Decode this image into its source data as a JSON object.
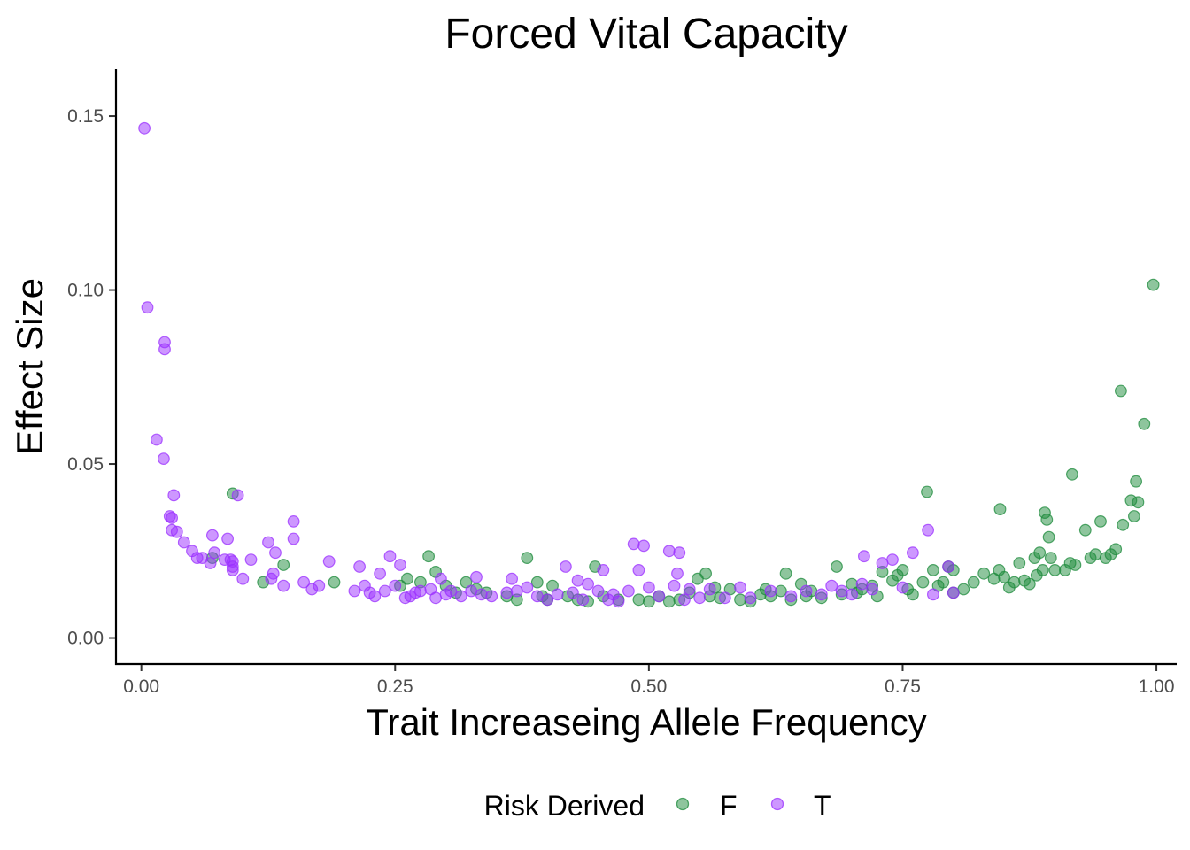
{
  "chart_data": {
    "type": "scatter",
    "title": "Forced Vital Capacity",
    "xlabel": "Trait Increaseing Allele Frequency",
    "ylabel": "Effect Size",
    "xlim": [
      -0.025,
      1.02
    ],
    "ylim": [
      -0.0075,
      0.1635
    ],
    "x_ticks": [
      0,
      0.25,
      0.5,
      0.75,
      1
    ],
    "x_tick_labels": [
      "0.00",
      "0.25",
      "0.50",
      "0.75",
      "1.00"
    ],
    "y_ticks": [
      0,
      0.05,
      0.1,
      0.15
    ],
    "y_tick_labels": [
      "0.00",
      "0.05",
      "0.10",
      "0.15"
    ],
    "grid": false,
    "legend": {
      "title": "Risk Derived",
      "position": "bottom"
    },
    "series": [
      {
        "name": "F",
        "color": "#1e8b3c",
        "points": [
          [
            0.09,
            0.0415
          ],
          [
            0.07,
            0.023
          ],
          [
            0.12,
            0.016
          ],
          [
            0.14,
            0.021
          ],
          [
            0.19,
            0.016
          ],
          [
            0.255,
            0.015
          ],
          [
            0.262,
            0.017
          ],
          [
            0.275,
            0.016
          ],
          [
            0.283,
            0.0235
          ],
          [
            0.29,
            0.019
          ],
          [
            0.3,
            0.015
          ],
          [
            0.31,
            0.013
          ],
          [
            0.32,
            0.016
          ],
          [
            0.33,
            0.014
          ],
          [
            0.34,
            0.013
          ],
          [
            0.36,
            0.012
          ],
          [
            0.37,
            0.011
          ],
          [
            0.38,
            0.023
          ],
          [
            0.39,
            0.016
          ],
          [
            0.395,
            0.012
          ],
          [
            0.4,
            0.011
          ],
          [
            0.405,
            0.015
          ],
          [
            0.42,
            0.012
          ],
          [
            0.43,
            0.011
          ],
          [
            0.44,
            0.0105
          ],
          [
            0.447,
            0.0205
          ],
          [
            0.455,
            0.012
          ],
          [
            0.47,
            0.011
          ],
          [
            0.49,
            0.011
          ],
          [
            0.5,
            0.0105
          ],
          [
            0.51,
            0.012
          ],
          [
            0.52,
            0.0105
          ],
          [
            0.53,
            0.011
          ],
          [
            0.54,
            0.013
          ],
          [
            0.548,
            0.017
          ],
          [
            0.556,
            0.0185
          ],
          [
            0.56,
            0.012
          ],
          [
            0.565,
            0.0145
          ],
          [
            0.57,
            0.0115
          ],
          [
            0.58,
            0.014
          ],
          [
            0.59,
            0.011
          ],
          [
            0.6,
            0.0105
          ],
          [
            0.61,
            0.0125
          ],
          [
            0.615,
            0.014
          ],
          [
            0.62,
            0.012
          ],
          [
            0.63,
            0.0135
          ],
          [
            0.635,
            0.0185
          ],
          [
            0.64,
            0.011
          ],
          [
            0.65,
            0.0155
          ],
          [
            0.655,
            0.012
          ],
          [
            0.66,
            0.0135
          ],
          [
            0.67,
            0.0115
          ],
          [
            0.685,
            0.0205
          ],
          [
            0.69,
            0.0125
          ],
          [
            0.7,
            0.0155
          ],
          [
            0.705,
            0.013
          ],
          [
            0.71,
            0.014
          ],
          [
            0.72,
            0.015
          ],
          [
            0.725,
            0.012
          ],
          [
            0.73,
            0.019
          ],
          [
            0.74,
            0.0165
          ],
          [
            0.745,
            0.018
          ],
          [
            0.75,
            0.0195
          ],
          [
            0.755,
            0.014
          ],
          [
            0.76,
            0.0125
          ],
          [
            0.77,
            0.016
          ],
          [
            0.774,
            0.042
          ],
          [
            0.78,
            0.0195
          ],
          [
            0.785,
            0.015
          ],
          [
            0.79,
            0.016
          ],
          [
            0.795,
            0.0205
          ],
          [
            0.8,
            0.0195
          ],
          [
            0.8,
            0.013
          ],
          [
            0.81,
            0.014
          ],
          [
            0.82,
            0.016
          ],
          [
            0.83,
            0.0185
          ],
          [
            0.84,
            0.017
          ],
          [
            0.845,
            0.0195
          ],
          [
            0.846,
            0.037
          ],
          [
            0.85,
            0.0175
          ],
          [
            0.855,
            0.0145
          ],
          [
            0.86,
            0.016
          ],
          [
            0.865,
            0.0215
          ],
          [
            0.87,
            0.0165
          ],
          [
            0.875,
            0.0155
          ],
          [
            0.88,
            0.023
          ],
          [
            0.882,
            0.018
          ],
          [
            0.885,
            0.0245
          ],
          [
            0.888,
            0.0195
          ],
          [
            0.89,
            0.036
          ],
          [
            0.892,
            0.034
          ],
          [
            0.894,
            0.029
          ],
          [
            0.896,
            0.023
          ],
          [
            0.9,
            0.0195
          ],
          [
            0.91,
            0.0195
          ],
          [
            0.915,
            0.0215
          ],
          [
            0.917,
            0.047
          ],
          [
            0.92,
            0.021
          ],
          [
            0.93,
            0.031
          ],
          [
            0.935,
            0.023
          ],
          [
            0.94,
            0.024
          ],
          [
            0.945,
            0.0335
          ],
          [
            0.95,
            0.023
          ],
          [
            0.955,
            0.024
          ],
          [
            0.96,
            0.0255
          ],
          [
            0.965,
            0.071
          ],
          [
            0.967,
            0.0325
          ],
          [
            0.975,
            0.0395
          ],
          [
            0.978,
            0.035
          ],
          [
            0.98,
            0.045
          ],
          [
            0.982,
            0.039
          ],
          [
            0.988,
            0.0615
          ],
          [
            0.997,
            0.1015
          ]
        ]
      },
      {
        "name": "T",
        "color": "#9b30ff",
        "points": [
          [
            0.003,
            0.1465
          ],
          [
            0.006,
            0.095
          ],
          [
            0.023,
            0.085
          ],
          [
            0.023,
            0.083
          ],
          [
            0.015,
            0.057
          ],
          [
            0.022,
            0.0515
          ],
          [
            0.032,
            0.041
          ],
          [
            0.028,
            0.035
          ],
          [
            0.03,
            0.0345
          ],
          [
            0.03,
            0.031
          ],
          [
            0.035,
            0.0305
          ],
          [
            0.042,
            0.0275
          ],
          [
            0.05,
            0.025
          ],
          [
            0.055,
            0.023
          ],
          [
            0.06,
            0.023
          ],
          [
            0.068,
            0.0215
          ],
          [
            0.072,
            0.0245
          ],
          [
            0.07,
            0.0295
          ],
          [
            0.082,
            0.0225
          ],
          [
            0.085,
            0.0285
          ],
          [
            0.088,
            0.0225
          ],
          [
            0.09,
            0.022
          ],
          [
            0.09,
            0.0205
          ],
          [
            0.09,
            0.0195
          ],
          [
            0.095,
            0.041
          ],
          [
            0.1,
            0.017
          ],
          [
            0.108,
            0.0225
          ],
          [
            0.125,
            0.0275
          ],
          [
            0.13,
            0.0185
          ],
          [
            0.132,
            0.0245
          ],
          [
            0.128,
            0.017
          ],
          [
            0.14,
            0.015
          ],
          [
            0.15,
            0.0335
          ],
          [
            0.15,
            0.0285
          ],
          [
            0.16,
            0.016
          ],
          [
            0.168,
            0.014
          ],
          [
            0.175,
            0.015
          ],
          [
            0.185,
            0.022
          ],
          [
            0.21,
            0.0135
          ],
          [
            0.215,
            0.0205
          ],
          [
            0.22,
            0.015
          ],
          [
            0.225,
            0.013
          ],
          [
            0.23,
            0.012
          ],
          [
            0.235,
            0.0185
          ],
          [
            0.24,
            0.0135
          ],
          [
            0.245,
            0.0235
          ],
          [
            0.25,
            0.015
          ],
          [
            0.255,
            0.021
          ],
          [
            0.26,
            0.0115
          ],
          [
            0.265,
            0.012
          ],
          [
            0.27,
            0.013
          ],
          [
            0.275,
            0.0135
          ],
          [
            0.285,
            0.014
          ],
          [
            0.29,
            0.0115
          ],
          [
            0.295,
            0.017
          ],
          [
            0.3,
            0.0125
          ],
          [
            0.305,
            0.0135
          ],
          [
            0.315,
            0.012
          ],
          [
            0.325,
            0.0135
          ],
          [
            0.33,
            0.0175
          ],
          [
            0.335,
            0.0125
          ],
          [
            0.345,
            0.012
          ],
          [
            0.36,
            0.013
          ],
          [
            0.365,
            0.017
          ],
          [
            0.37,
            0.0135
          ],
          [
            0.38,
            0.0145
          ],
          [
            0.39,
            0.012
          ],
          [
            0.4,
            0.011
          ],
          [
            0.41,
            0.0125
          ],
          [
            0.418,
            0.0205
          ],
          [
            0.425,
            0.013
          ],
          [
            0.43,
            0.0165
          ],
          [
            0.435,
            0.011
          ],
          [
            0.44,
            0.0155
          ],
          [
            0.45,
            0.0135
          ],
          [
            0.455,
            0.0195
          ],
          [
            0.46,
            0.011
          ],
          [
            0.465,
            0.0125
          ],
          [
            0.47,
            0.0105
          ],
          [
            0.48,
            0.0135
          ],
          [
            0.485,
            0.027
          ],
          [
            0.49,
            0.0195
          ],
          [
            0.495,
            0.0265
          ],
          [
            0.5,
            0.0145
          ],
          [
            0.51,
            0.012
          ],
          [
            0.52,
            0.025
          ],
          [
            0.525,
            0.015
          ],
          [
            0.528,
            0.0185
          ],
          [
            0.53,
            0.0245
          ],
          [
            0.535,
            0.011
          ],
          [
            0.54,
            0.014
          ],
          [
            0.55,
            0.0115
          ],
          [
            0.56,
            0.014
          ],
          [
            0.575,
            0.0115
          ],
          [
            0.59,
            0.0145
          ],
          [
            0.6,
            0.0115
          ],
          [
            0.62,
            0.0135
          ],
          [
            0.64,
            0.012
          ],
          [
            0.655,
            0.0135
          ],
          [
            0.67,
            0.0125
          ],
          [
            0.68,
            0.015
          ],
          [
            0.69,
            0.0135
          ],
          [
            0.7,
            0.0125
          ],
          [
            0.71,
            0.0155
          ],
          [
            0.712,
            0.0235
          ],
          [
            0.72,
            0.014
          ],
          [
            0.73,
            0.0215
          ],
          [
            0.74,
            0.0225
          ],
          [
            0.75,
            0.0145
          ],
          [
            0.76,
            0.0245
          ],
          [
            0.775,
            0.031
          ],
          [
            0.78,
            0.0125
          ],
          [
            0.795,
            0.0205
          ],
          [
            0.8,
            0.013
          ]
        ]
      }
    ]
  }
}
